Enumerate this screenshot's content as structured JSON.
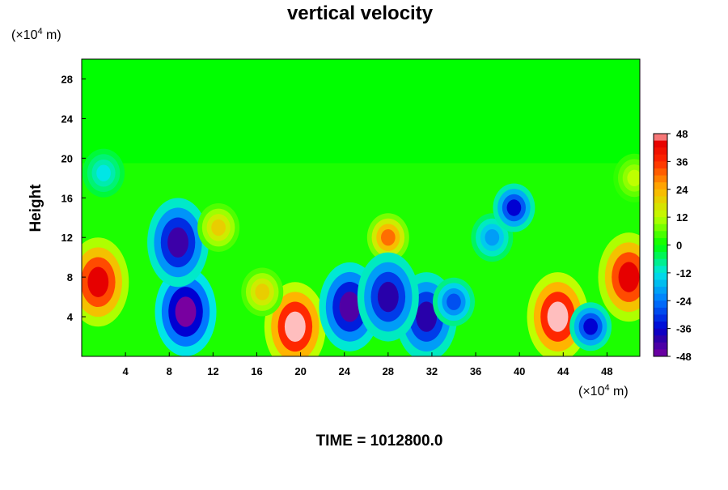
{
  "chart_data": {
    "type": "heatmap",
    "title": "vertical velocity",
    "ylabel": "Height",
    "y_unit": {
      "pre": "(×10",
      "exp": "4",
      "post": " m)"
    },
    "x_unit": {
      "pre": "(×10",
      "exp": "4",
      "post": " m)"
    },
    "footer": "TIME = 1012800.0",
    "xlim": [
      0,
      51
    ],
    "ylim": [
      0,
      30
    ],
    "x_ticks": [
      4,
      8,
      12,
      16,
      20,
      24,
      28,
      32,
      36,
      40,
      44,
      48
    ],
    "y_ticks": [
      4,
      8,
      12,
      16,
      20,
      24,
      28
    ],
    "colorbar": {
      "range": [
        -48,
        48
      ],
      "ticks": [
        48,
        36,
        24,
        12,
        0,
        -12,
        -24,
        -36,
        -48
      ]
    },
    "features": [
      {
        "x": 1.5,
        "y": 7.5,
        "value": 44
      },
      {
        "x": 50.0,
        "y": 8.0,
        "value": 44
      },
      {
        "x": 19.5,
        "y": 3.0,
        "value": 48
      },
      {
        "x": 43.5,
        "y": 4.0,
        "value": 48
      },
      {
        "x": 9.5,
        "y": 4.5,
        "value": -48
      },
      {
        "x": 8.8,
        "y": 11.5,
        "value": -42
      },
      {
        "x": 24.5,
        "y": 5.0,
        "value": -44
      },
      {
        "x": 31.5,
        "y": 4.0,
        "value": -40
      },
      {
        "x": 34.0,
        "y": 5.5,
        "value": -28
      },
      {
        "x": 37.5,
        "y": 12.0,
        "value": -20
      },
      {
        "x": 39.5,
        "y": 15.0,
        "value": -36
      },
      {
        "x": 46.5,
        "y": 3.0,
        "value": -36
      },
      {
        "x": 28.0,
        "y": 12.0,
        "value": 30
      },
      {
        "x": 28.0,
        "y": 6.0,
        "value": -40
      },
      {
        "x": 16.5,
        "y": 6.5,
        "value": 20
      },
      {
        "x": 12.5,
        "y": 13.0,
        "value": 20
      },
      {
        "x": 2.0,
        "y": 18.5,
        "value": -12
      },
      {
        "x": 50.5,
        "y": 18.0,
        "value": 12
      }
    ]
  }
}
